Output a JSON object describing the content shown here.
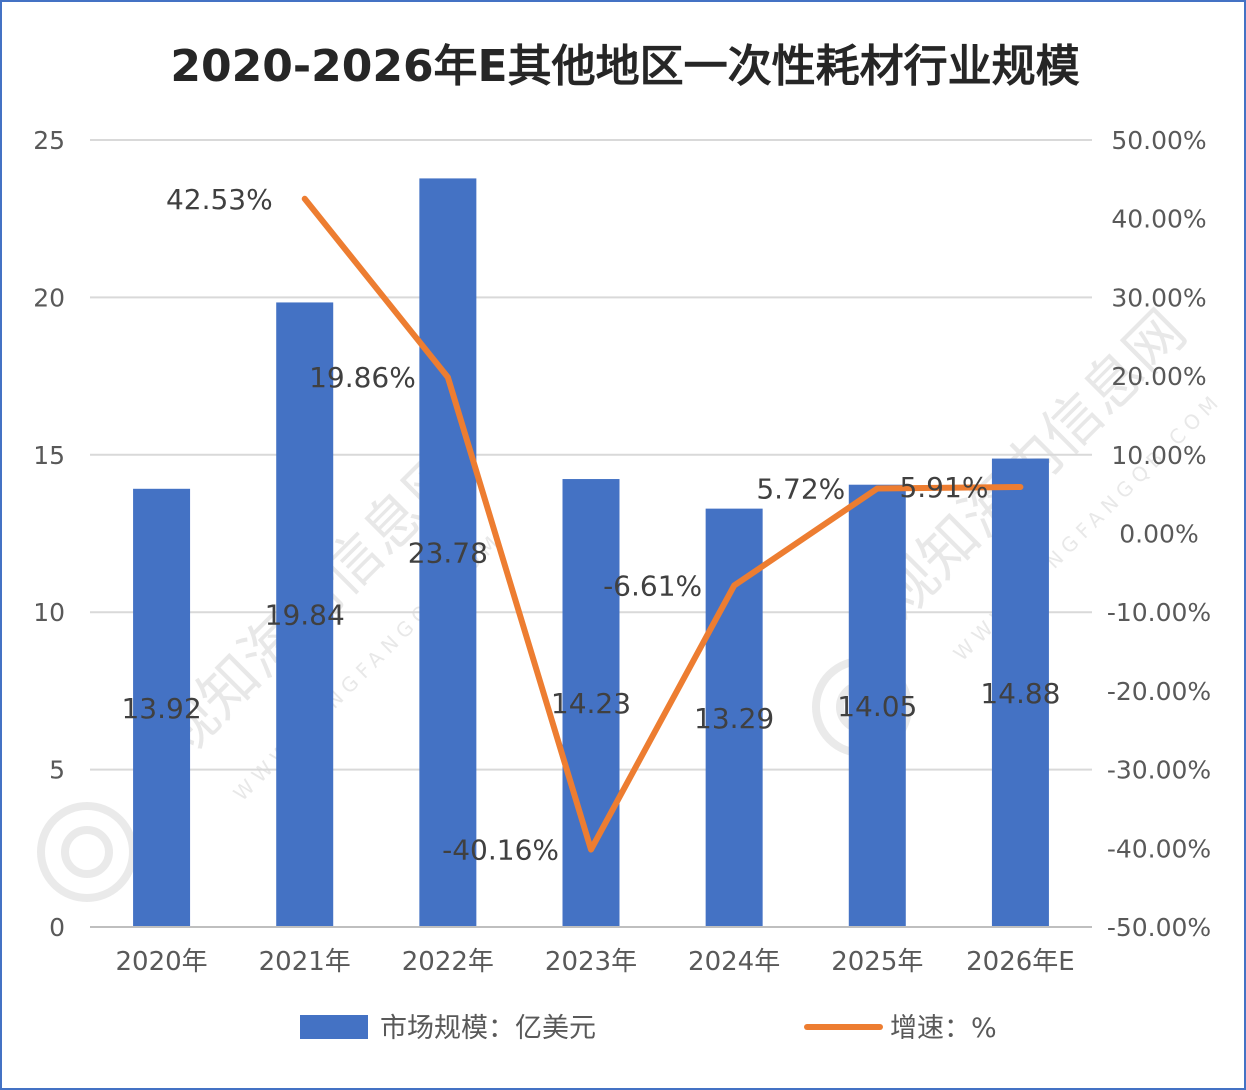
{
  "chart_data": {
    "type": "bar+line",
    "title": "2020-2026年E其他地区一次性耗材行业规模",
    "categories": [
      "2020年",
      "2021年",
      "2022年",
      "2023年",
      "2024年",
      "2025年",
      "2026年E"
    ],
    "series": [
      {
        "name": "市场规模：亿美元",
        "type": "bar",
        "axis": "left",
        "values": [
          13.92,
          19.84,
          23.78,
          14.23,
          13.29,
          14.05,
          14.88
        ],
        "labels": [
          "13.92",
          "19.84",
          "23.78",
          "14.23",
          "13.29",
          "14.05",
          "14.88"
        ]
      },
      {
        "name": "增速：%",
        "type": "line",
        "axis": "right",
        "values": [
          null,
          42.53,
          19.86,
          -40.16,
          -6.61,
          5.72,
          5.91
        ],
        "labels": [
          "",
          "42.53%",
          "19.86%",
          "-40.16%",
          "-6.61%",
          "5.72%",
          "5.91%"
        ]
      }
    ],
    "y_left": {
      "min": 0,
      "max": 25,
      "ticks": [
        "0",
        "5",
        "10",
        "15",
        "20",
        "25"
      ]
    },
    "y_right": {
      "min": -50,
      "max": 50,
      "ticks": [
        "-50.00%",
        "-40.00%",
        "-30.00%",
        "-20.00%",
        "-10.00%",
        "0.00%",
        "10.00%",
        "20.00%",
        "30.00%",
        "40.00%",
        "50.00%"
      ]
    },
    "grid": true,
    "legend_position": "bottom"
  },
  "watermark": {
    "text": "观知海内信息网",
    "url": "WWW.DONGFANGQB.COM"
  },
  "colors": {
    "bar": "#4472c4",
    "line": "#ed7d31",
    "grid": "#d9d9d9",
    "border": "#4472c4"
  }
}
